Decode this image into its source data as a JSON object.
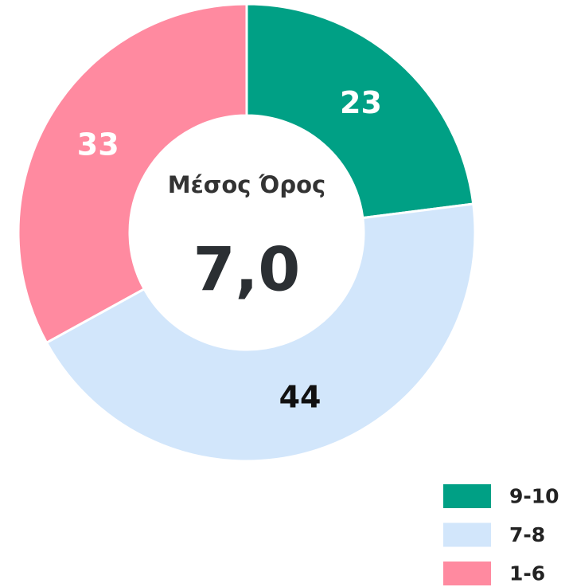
{
  "chart_data": {
    "type": "donut",
    "categories": [
      "9-10",
      "7-8",
      "1-6"
    ],
    "values": [
      23,
      44,
      33
    ],
    "colors": [
      "#00a085",
      "#d2e6fb",
      "#ff8aa0"
    ],
    "center_title": "Μέσος Όρος",
    "center_value": {
      "value": 7.0,
      "label": "7,0"
    },
    "legend": "bottom-right"
  }
}
